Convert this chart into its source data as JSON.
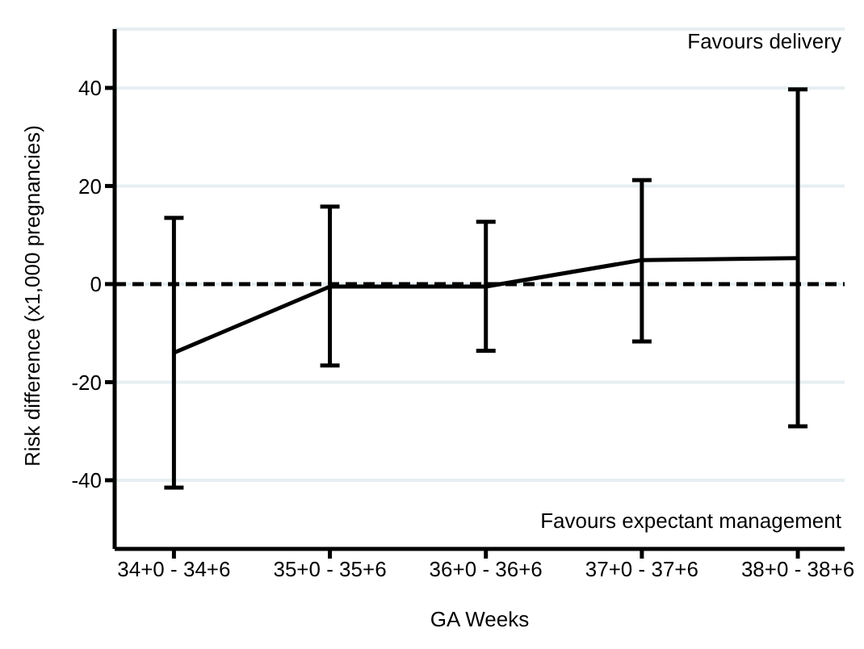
{
  "chart_data": {
    "type": "line",
    "xlabel": "GA Weeks",
    "ylabel": "Risk difference (x1,000 pregnancies)",
    "categories": [
      "34+0 - 34+6",
      "35+0 - 35+6",
      "36+0 - 36+6",
      "37+0 - 37+6",
      "38+0 - 38+6"
    ],
    "series": [
      {
        "color": "#000000",
        "values": [
          -14,
          -0.5,
          -0.5,
          4.9,
          5.3
        ],
        "errors": [
          [
            -41.5,
            13.5
          ],
          [
            -16.6,
            15.8
          ],
          [
            -13.6,
            12.7
          ],
          [
            -11.7,
            21.2
          ],
          [
            -29,
            39.7
          ]
        ]
      }
    ],
    "ylim": [
      -54,
      52
    ],
    "yticks": [
      -40,
      -20,
      0,
      20,
      40
    ],
    "grid": "y",
    "legend": false,
    "marker": "none",
    "line_style": "solid",
    "ref_lines": [
      {
        "axis": "y",
        "value": 0,
        "color": "#000000",
        "line_style": "dashed"
      }
    ],
    "annotations": [
      "Favours delivery",
      "Favours expectant management"
    ]
  }
}
